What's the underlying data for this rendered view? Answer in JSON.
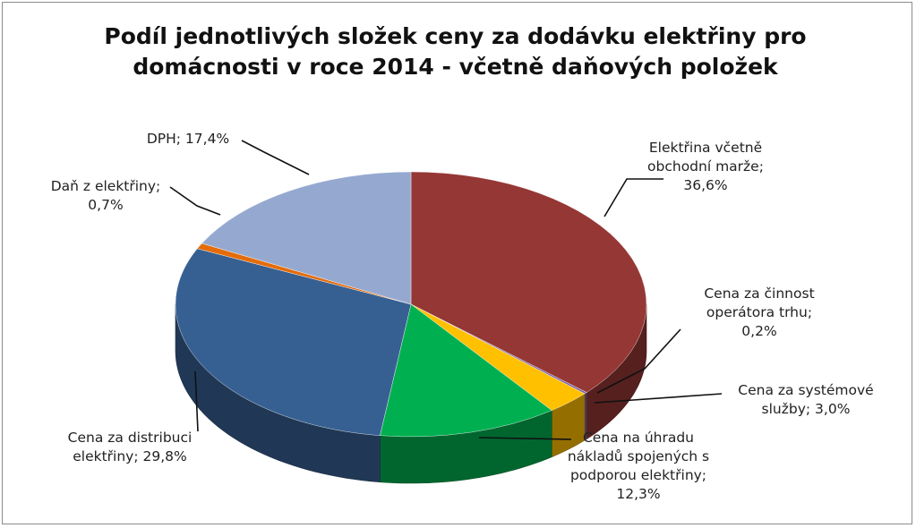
{
  "chart_data": {
    "type": "pie",
    "title_lines": [
      "Podíl jednotlivých složek ceny za dodávku elektřiny pro",
      "domácnosti v roce 2014 - včetně daňových položek"
    ],
    "slices": [
      {
        "label_lines": [
          "Elektřina včetně",
          "obchodní marže;",
          "36,6%"
        ],
        "value": 36.6,
        "color": "#953735"
      },
      {
        "label_lines": [
          "Cena za činnost",
          "operátora trhu;",
          "0,2%"
        ],
        "value": 0.2,
        "color": "#8064a2"
      },
      {
        "label_lines": [
          "Cena za systémové",
          "služby; 3,0%"
        ],
        "value": 3.0,
        "color": "#ffc000"
      },
      {
        "label_lines": [
          "Cena na úhradu",
          "nákladů spojených s",
          "podporou elektřiny;",
          "12,3%"
        ],
        "value": 12.3,
        "color": "#00b050"
      },
      {
        "label_lines": [
          "Cena za distribuci",
          "elektřiny; 29,8%"
        ],
        "value": 29.8,
        "color": "#376092"
      },
      {
        "label_lines": [
          "Daň z elektřiny;",
          "0,7%"
        ],
        "value": 0.7,
        "color": "#e46c0a"
      },
      {
        "label_lines": [
          "DPH; 17,4%"
        ],
        "value": 17.4,
        "color": "#95a9d0"
      }
    ]
  }
}
